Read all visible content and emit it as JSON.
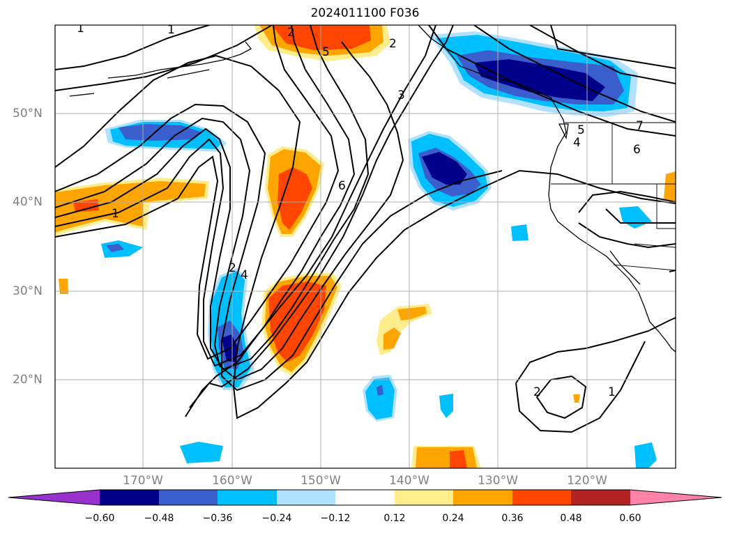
{
  "title": "2024011100 F036",
  "map": {
    "lat_labels": [
      "50°N",
      "40°N",
      "30°N",
      "20°N"
    ],
    "lon_labels": [
      "170°W",
      "160°W",
      "150°W",
      "140°W",
      "130°W",
      "120°W"
    ],
    "contour_labels": [
      "1",
      "1",
      "2",
      "5",
      "2",
      "3",
      "6",
      "2",
      "4",
      "5",
      "4",
      "7",
      "6",
      "2",
      "1",
      "1"
    ]
  },
  "colorbar": {
    "ticks": [
      "−0.60",
      "−0.48",
      "−0.36",
      "−0.24",
      "−0.12",
      "0.12",
      "0.24",
      "0.36",
      "0.48",
      "0.60"
    ],
    "colors": [
      "#9932cc",
      "#00008b",
      "#3a5fcd",
      "#00bfff",
      "#b0e2ff",
      "#ffffff",
      "#ffec8b",
      "#ffa500",
      "#ff4500",
      "#b22222",
      "#ff82ab"
    ]
  }
}
